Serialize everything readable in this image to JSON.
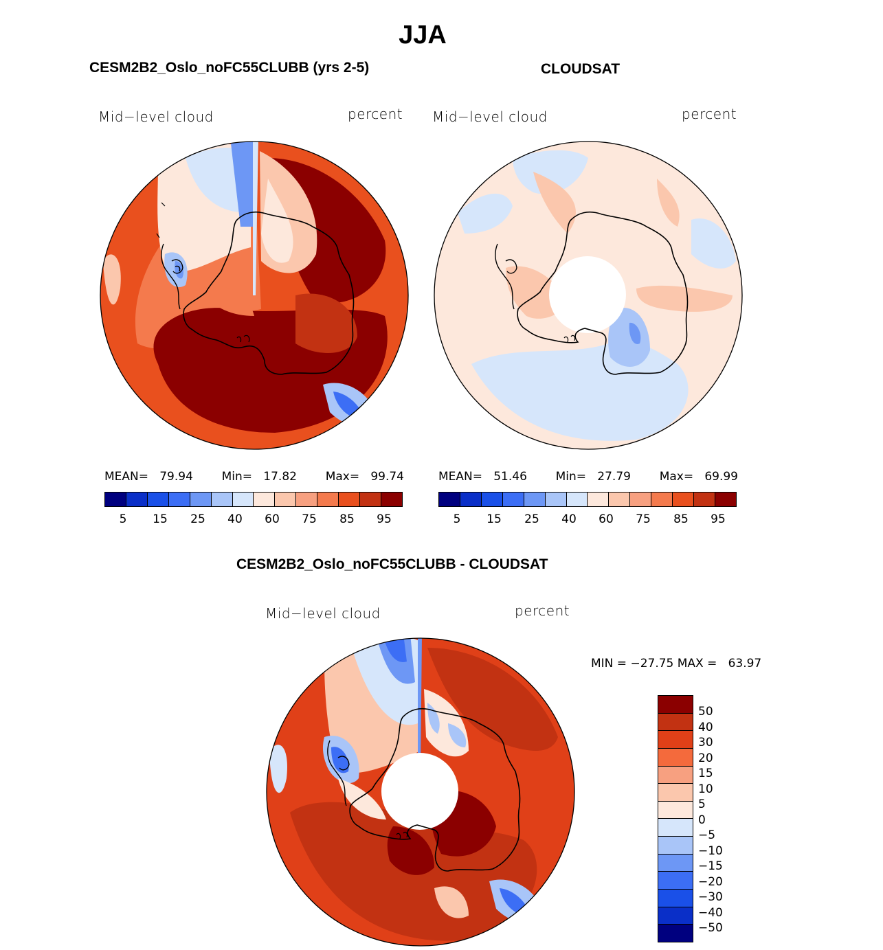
{
  "season_title": "JJA",
  "colors": {
    "seq": [
      "#00007f",
      "#0a2fc8",
      "#1a50e8",
      "#3c6ef5",
      "#6d97f5",
      "#a9c5f8",
      "#d6e6fb",
      "#fde8dc",
      "#fbc7ad",
      "#f7a080",
      "#f47a4d",
      "#e9501e",
      "#c23212",
      "#8b0000"
    ],
    "diff": [
      "#8b0000",
      "#c23212",
      "#e04018",
      "#f46a3c",
      "#f7a080",
      "#fbc7ad",
      "#fde8dc",
      "#d6e6fb",
      "#a9c5f8",
      "#6d97f5",
      "#3c6ef5",
      "#1a50e8",
      "#0a2fc8",
      "#00007f"
    ],
    "coast": "#000000"
  },
  "panel_model": {
    "title": "CESM2B2_Oslo_noFC55CLUBB (yrs 2-5)",
    "variable": "Mid−level cloud",
    "units": "percent",
    "mean_label": "MEAN=",
    "mean": "79.94",
    "min_label": "Min=",
    "min": "17.82",
    "max_label": "Max=",
    "max": "99.74"
  },
  "panel_obs": {
    "title": "CLOUDSAT",
    "variable": "Mid−level cloud",
    "units": "percent",
    "mean_label": "MEAN=",
    "mean": "51.46",
    "min_label": "Min=",
    "min": "27.79",
    "max_label": "Max=",
    "max": "69.99"
  },
  "seq_colorbar_labels": [
    "5",
    "15",
    "25",
    "40",
    "60",
    "75",
    "85",
    "95"
  ],
  "panel_diff": {
    "title": "CESM2B2_Oslo_noFC55CLUBB - CLOUDSAT",
    "variable": "Mid−level cloud",
    "units": "percent",
    "minmax": "MIN = −27.75 MAX =   63.97"
  },
  "diff_colorbar_labels": [
    "50",
    "40",
    "30",
    "20",
    "15",
    "10",
    "5",
    "0",
    "−5",
    "−10",
    "−15",
    "−20",
    "−30",
    "−40",
    "−50"
  ]
}
